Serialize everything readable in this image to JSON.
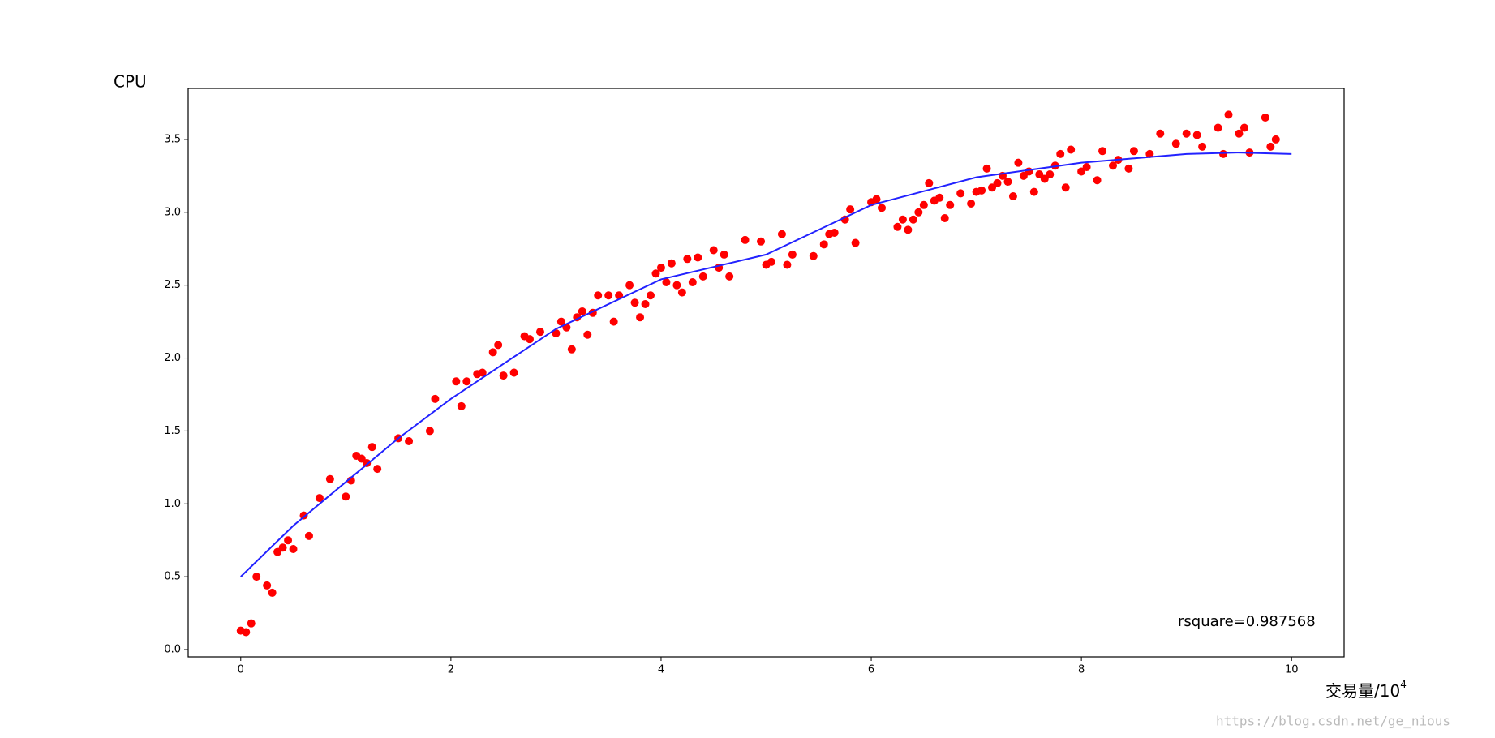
{
  "chart_data": {
    "type": "scatter",
    "y_label": "CPU",
    "x_label": "交易量/10",
    "x_label_superscript": "4",
    "annotation": "rsquare=0.987568",
    "watermark": "https://blog.csdn.net/ge_nious",
    "xlim": [
      -0.5,
      10.5
    ],
    "ylim": [
      -0.05,
      3.85
    ],
    "xticks": [
      0,
      2,
      4,
      6,
      8,
      10
    ],
    "yticks": [
      {
        "value": 0,
        "label": "0.0"
      },
      0.5,
      {
        "value": 1,
        "label": "1.0"
      },
      1.5,
      {
        "value": 2,
        "label": "2.0"
      },
      2.5,
      {
        "value": 3,
        "label": "3.0"
      },
      3.5
    ],
    "series": [
      {
        "kind": "points",
        "color": "#ff0000",
        "x": [
          0,
          0.05,
          0.1,
          0.15,
          0.25,
          0.3,
          0.35,
          0.4,
          0.45,
          0.5,
          0.6,
          0.65,
          0.75,
          0.85,
          1.0,
          1.05,
          1.1,
          1.15,
          1.2,
          1.25,
          1.3,
          1.5,
          1.6,
          1.8,
          1.85,
          2.05,
          2.1,
          2.15,
          2.25,
          2.3,
          2.4,
          2.45,
          2.5,
          2.6,
          2.7,
          2.75,
          2.85,
          3.0,
          3.05,
          3.1,
          3.15,
          3.2,
          3.25,
          3.3,
          3.35,
          3.4,
          3.5,
          3.55,
          3.6,
          3.7,
          3.75,
          3.8,
          3.85,
          3.9,
          3.95,
          4.0,
          4.05,
          4.1,
          4.15,
          4.2,
          4.25,
          4.3,
          4.35,
          4.4,
          4.5,
          4.55,
          4.6,
          4.65,
          4.8,
          4.95,
          5.0,
          5.05,
          5.15,
          5.2,
          5.25,
          5.45,
          5.55,
          5.6,
          5.65,
          5.75,
          5.8,
          5.85,
          6.0,
          6.05,
          6.1,
          6.25,
          6.3,
          6.35,
          6.4,
          6.45,
          6.5,
          6.55,
          6.6,
          6.65,
          6.7,
          6.75,
          6.85,
          6.95,
          7.0,
          7.05,
          7.1,
          7.15,
          7.2,
          7.25,
          7.3,
          7.35,
          7.4,
          7.45,
          7.5,
          7.55,
          7.6,
          7.65,
          7.7,
          7.75,
          7.8,
          7.85,
          7.9,
          8.0,
          8.05,
          8.15,
          8.2,
          8.3,
          8.35,
          8.45,
          8.5,
          8.65,
          8.75,
          8.9,
          9.0,
          9.1,
          9.15,
          9.3,
          9.35,
          9.4,
          9.5,
          9.55,
          9.6,
          9.75,
          9.8,
          9.85
        ],
        "values": [
          0.13,
          0.12,
          0.18,
          0.5,
          0.44,
          0.39,
          0.67,
          0.7,
          0.75,
          0.69,
          0.92,
          0.78,
          1.04,
          1.17,
          1.05,
          1.16,
          1.33,
          1.31,
          1.28,
          1.39,
          1.24,
          1.45,
          1.43,
          1.5,
          1.72,
          1.84,
          1.67,
          1.84,
          1.89,
          1.9,
          2.04,
          2.09,
          1.88,
          1.9,
          2.15,
          2.13,
          2.18,
          2.17,
          2.25,
          2.21,
          2.06,
          2.28,
          2.32,
          2.16,
          2.31,
          2.43,
          2.43,
          2.25,
          2.43,
          2.5,
          2.38,
          2.28,
          2.37,
          2.43,
          2.58,
          2.62,
          2.52,
          2.65,
          2.5,
          2.45,
          2.68,
          2.52,
          2.69,
          2.56,
          2.74,
          2.62,
          2.71,
          2.56,
          2.81,
          2.8,
          2.64,
          2.66,
          2.85,
          2.64,
          2.71,
          2.7,
          2.78,
          2.85,
          2.86,
          2.95,
          3.02,
          2.79,
          3.07,
          3.09,
          3.03,
          2.9,
          2.95,
          2.88,
          2.95,
          3.0,
          3.05,
          3.2,
          3.08,
          3.1,
          2.96,
          3.05,
          3.13,
          3.06,
          3.14,
          3.15,
          3.3,
          3.17,
          3.2,
          3.25,
          3.21,
          3.11,
          3.34,
          3.25,
          3.28,
          3.14,
          3.26,
          3.23,
          3.26,
          3.32,
          3.4,
          3.17,
          3.43,
          3.28,
          3.31,
          3.22,
          3.42,
          3.32,
          3.36,
          3.3,
          3.42,
          3.4,
          3.54,
          3.47,
          3.54,
          3.53,
          3.45,
          3.58,
          3.4,
          3.67,
          3.54,
          3.58,
          3.41,
          3.65,
          3.45,
          3.5
        ]
      },
      {
        "kind": "line",
        "color": "#2222ff",
        "x": [
          0,
          0.5,
          1,
          1.5,
          2,
          3,
          4,
          5,
          6,
          7,
          8,
          9,
          9.5,
          10
        ],
        "values": [
          0.5,
          0.85,
          1.15,
          1.45,
          1.72,
          2.2,
          2.54,
          2.71,
          3.05,
          3.24,
          3.34,
          3.4,
          3.41,
          3.4
        ]
      }
    ]
  }
}
